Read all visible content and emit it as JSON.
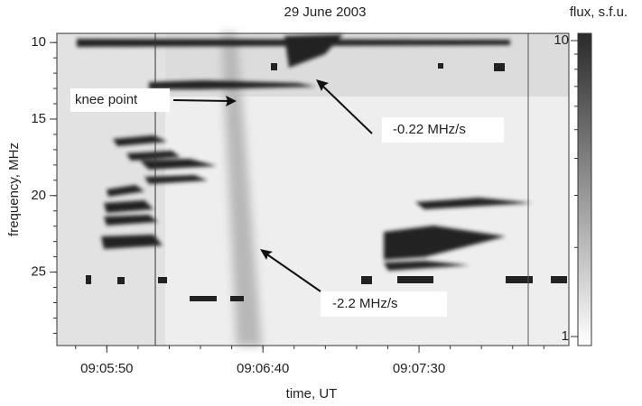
{
  "chart_data": {
    "type": "spectrogram",
    "title": "29 June 2003",
    "x_label": "time, UT",
    "y_label": "frequency, MHz",
    "colorbar_label": "flux, s.f.u.",
    "xlim": [
      32734,
      32898
    ],
    "xticks": [
      {
        "value": 32750,
        "label": "09:05:50"
      },
      {
        "value": 32800,
        "label": "09:06:40"
      },
      {
        "value": 32850,
        "label": "09:07:30"
      }
    ],
    "ylim": [
      9.4,
      29.8
    ],
    "y_inverted": true,
    "yticks": [
      10,
      15,
      20,
      25
    ],
    "clim": [
      1,
      10
    ],
    "cticks": [
      1,
      10
    ],
    "color_log_scale": true,
    "annotations": [
      "knee point",
      "-0.22 MHz/s",
      "-2.2 MHz/s"
    ]
  }
}
